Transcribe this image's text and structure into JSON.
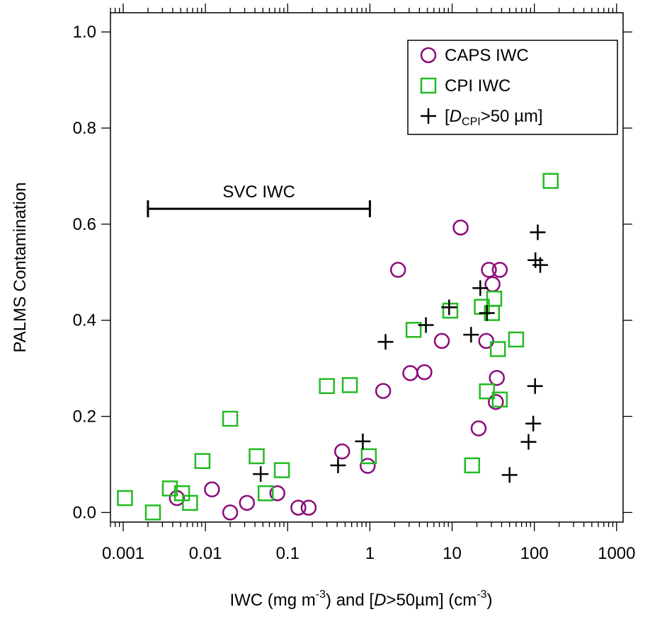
{
  "chart_data": {
    "type": "scatter",
    "xlabel": {
      "pre": "IWC (mg m",
      "exp1": "-3",
      "mid": ") and [",
      "italic": "D",
      "post": ">50µm] (cm",
      "exp2": "-3",
      "end": ")"
    },
    "ylabel": "PALMS Contamination",
    "x_scale": "log",
    "xlim": [
      0.0007,
      1200
    ],
    "ylim": [
      -0.02,
      1.04
    ],
    "x_ticks": [
      0.001,
      0.01,
      0.1,
      1,
      10,
      100,
      1000
    ],
    "x_tick_labels": [
      "0.001",
      "0.01",
      "0.1",
      "1",
      "10",
      "100",
      "1000"
    ],
    "y_ticks": [
      0.0,
      0.2,
      0.4,
      0.6,
      0.8,
      1.0
    ],
    "y_tick_labels": [
      "0.0",
      "0.2",
      "0.4",
      "0.6",
      "0.8",
      "1.0"
    ],
    "grid": false,
    "legend_position": "top-right",
    "series": [
      {
        "name": "CAPS IWC",
        "marker": "circle",
        "color": "#8b0a7a",
        "points": [
          [
            0.0045,
            0.03
          ],
          [
            0.012,
            0.048
          ],
          [
            0.02,
            0.0
          ],
          [
            0.032,
            0.02
          ],
          [
            0.075,
            0.04
          ],
          [
            0.135,
            0.01
          ],
          [
            0.18,
            0.01
          ],
          [
            0.46,
            0.127
          ],
          [
            0.94,
            0.097
          ],
          [
            1.45,
            0.253
          ],
          [
            2.2,
            0.505
          ],
          [
            3.1,
            0.29
          ],
          [
            4.6,
            0.292
          ],
          [
            7.5,
            0.357
          ],
          [
            12.7,
            0.593
          ],
          [
            21,
            0.175
          ],
          [
            26,
            0.357
          ],
          [
            28,
            0.505
          ],
          [
            31,
            0.475
          ],
          [
            34,
            0.23
          ],
          [
            35,
            0.28
          ],
          [
            38,
            0.505
          ]
        ]
      },
      {
        "name": "CPI IWC",
        "marker": "square",
        "color": "#22bb22",
        "points": [
          [
            0.00105,
            0.03
          ],
          [
            0.0023,
            0.0
          ],
          [
            0.0037,
            0.05
          ],
          [
            0.0052,
            0.04
          ],
          [
            0.0065,
            0.02
          ],
          [
            0.0092,
            0.107
          ],
          [
            0.02,
            0.195
          ],
          [
            0.042,
            0.117
          ],
          [
            0.054,
            0.04
          ],
          [
            0.085,
            0.088
          ],
          [
            0.3,
            0.263
          ],
          [
            0.57,
            0.265
          ],
          [
            0.97,
            0.117
          ],
          [
            3.4,
            0.38
          ],
          [
            9.5,
            0.42
          ],
          [
            17.5,
            0.098
          ],
          [
            23,
            0.428
          ],
          [
            26.5,
            0.252
          ],
          [
            30.5,
            0.415
          ],
          [
            32.5,
            0.445
          ],
          [
            36,
            0.34
          ],
          [
            38,
            0.235
          ],
          [
            60,
            0.36
          ],
          [
            158,
            0.69
          ]
        ]
      },
      {
        "name": "[DCPI>50 µm]",
        "legend_label": {
          "open": "[",
          "italic": "D",
          "sub": "CPI",
          "close": ">50 µm]"
        },
        "marker": "plus",
        "color": "#000000",
        "points": [
          [
            0.047,
            0.08
          ],
          [
            0.41,
            0.098
          ],
          [
            0.82,
            0.148
          ],
          [
            1.55,
            0.355
          ],
          [
            4.8,
            0.39
          ],
          [
            9.2,
            0.427
          ],
          [
            17,
            0.37
          ],
          [
            22,
            0.467
          ],
          [
            26.5,
            0.415
          ],
          [
            50,
            0.078
          ],
          [
            85,
            0.147
          ],
          [
            97,
            0.185
          ],
          [
            102,
            0.263
          ],
          [
            103,
            0.525
          ],
          [
            110,
            0.583
          ],
          [
            118,
            0.515
          ]
        ]
      }
    ],
    "annotations": [
      {
        "text": "SVC IWC",
        "type": "range_bar",
        "x_range": [
          0.002,
          1.0
        ],
        "y": 0.632
      }
    ]
  }
}
